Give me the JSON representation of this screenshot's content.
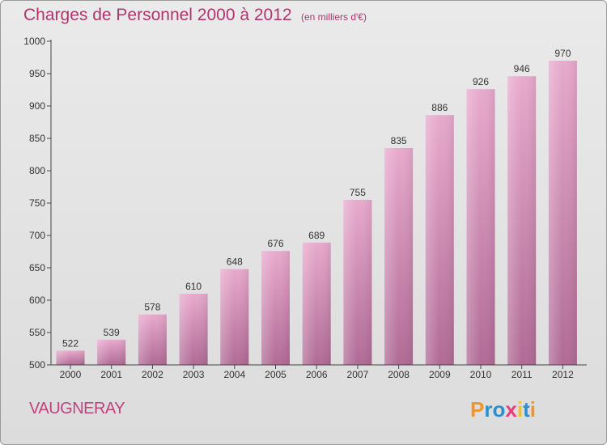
{
  "chart_data": {
    "type": "bar",
    "title": "Charges de Personnel 2000 à 2012",
    "subtitle": "(en milliers d'€)",
    "categories": [
      "2000",
      "2001",
      "2002",
      "2003",
      "2004",
      "2005",
      "2006",
      "2007",
      "2008",
      "2009",
      "2010",
      "2011",
      "2012"
    ],
    "values": [
      522,
      539,
      578,
      610,
      648,
      676,
      689,
      755,
      835,
      886,
      926,
      946,
      970
    ],
    "ylim": [
      500,
      1000
    ],
    "yticks": [
      500,
      550,
      600,
      650,
      700,
      750,
      800,
      850,
      900,
      950,
      1000
    ],
    "xlabel": "",
    "ylabel": "",
    "grid": false
  },
  "footer": {
    "place": "VAUGNERAY",
    "logo_letters": [
      "P",
      "r",
      "o",
      "x",
      "i",
      "t",
      "i"
    ],
    "logo_colors": [
      "#f0952a",
      "#2c90cf",
      "#2c90cf",
      "#e63c7c",
      "#f0c419",
      "#2c90cf",
      "#f0952a"
    ]
  },
  "colors": {
    "title": "#b0346e",
    "bar_top": "#e8a9cd",
    "bar_bottom": "#b06b95",
    "axis": "#444444",
    "label": "#333333"
  }
}
